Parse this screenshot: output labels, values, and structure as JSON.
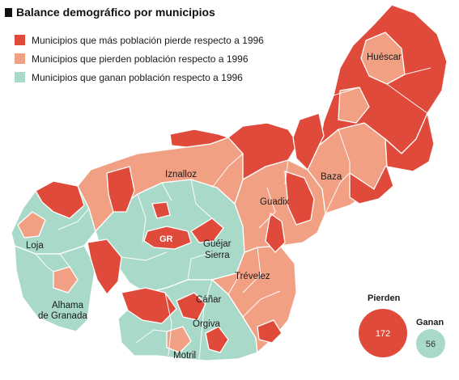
{
  "title": "Balance demográfico por municipios",
  "colors": {
    "loses_most": "#e04a3b",
    "loses": "#f2a083",
    "gains": "#a9d9c9",
    "border": "#ffffff",
    "gr_fill": "#e04a3b"
  },
  "legend": [
    {
      "label": "Municipios que más población pierde respecto a 1996",
      "color": "#e04a3b"
    },
    {
      "label": "Municipios que pierden población respecto a 1996",
      "color": "#f2a083"
    },
    {
      "label": "Municipios que ganan población respecto a 1996",
      "color": "#a9d9c9"
    }
  ],
  "places": {
    "huescar": "Huéscar",
    "baza": "Baza",
    "iznalloz": "Iznalloz",
    "guadix": "Guadix",
    "loja": "Loja",
    "gr": "GR",
    "guejar_1": "Güéjar",
    "guejar_2": "Sierra",
    "trevelez": "Trévelez",
    "alhama_1": "Alhama",
    "alhama_2": "de Granada",
    "canar": "Cáñar",
    "orgiva": "Órgiva",
    "motril": "Motril"
  },
  "summary": {
    "lose": {
      "label": "Pierden",
      "value": "172",
      "count": 172
    },
    "gain": {
      "label": "Ganan",
      "value": "56",
      "count": 56
    }
  }
}
